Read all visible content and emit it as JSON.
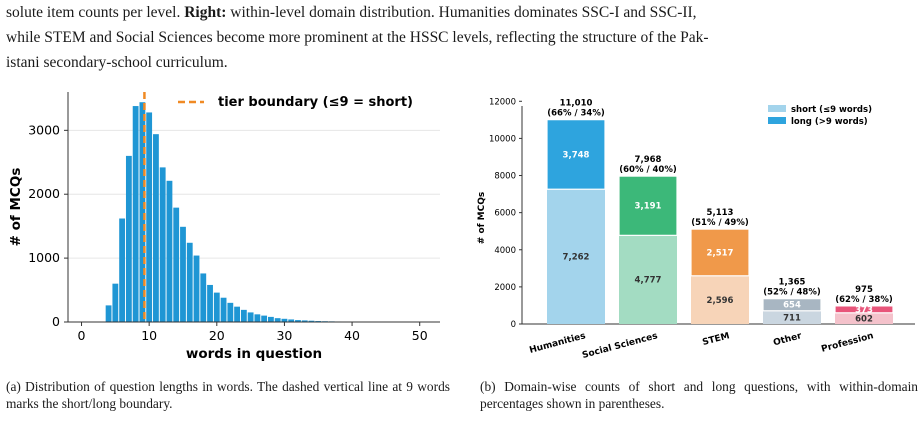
{
  "text": {
    "intro_line1": "solute item counts per level.",
    "intro_right_label": "Right:",
    "intro_line1_rest": " within-level domain distribution. Humanities dominates SSC-I and SSC-II,",
    "intro_line2": "while STEM and Social Sciences become more prominent at the HSSC levels, reflecting the structure of the Pak-",
    "intro_line3": "istani secondary-school curriculum.",
    "caption_a": "(a) Distribution of question lengths in words. The dashed vertical line at 9 words marks the short/long boundary.",
    "caption_b": "(b) Domain-wise counts of short and long questions, with within-domain percentages shown in parentheses."
  },
  "chart_data": [
    {
      "type": "bar",
      "subtype": "histogram",
      "xlabel": "words in question",
      "ylabel": "# of MCQs",
      "xlim": [
        -2,
        53
      ],
      "ylim": [
        0,
        3600
      ],
      "xticks": [
        0,
        10,
        20,
        30,
        40,
        50
      ],
      "yticks": [
        0,
        1000,
        2000,
        3000
      ],
      "x": [
        1,
        2,
        3,
        4,
        5,
        6,
        7,
        8,
        9,
        10,
        11,
        12,
        13,
        14,
        15,
        16,
        17,
        18,
        19,
        20,
        21,
        22,
        23,
        24,
        25,
        26,
        27,
        28,
        29,
        30,
        31,
        32,
        33,
        34,
        35,
        36,
        37,
        38,
        39,
        40,
        41,
        42,
        43,
        44,
        45,
        46,
        47,
        48,
        49,
        50,
        51
      ],
      "values": [
        2,
        3,
        5,
        260,
        600,
        1620,
        2600,
        3380,
        3440,
        3280,
        2940,
        2420,
        2210,
        1790,
        1490,
        1240,
        1040,
        760,
        580,
        460,
        380,
        300,
        240,
        190,
        150,
        120,
        100,
        80,
        60,
        50,
        40,
        30,
        25,
        20,
        15,
        12,
        10,
        8,
        6,
        5,
        4,
        3,
        3,
        2,
        2,
        1,
        1,
        1,
        1,
        1,
        1
      ],
      "bar_color": "#1f96d4",
      "threshold": 9.3,
      "threshold_color": "#f08a24",
      "legend": {
        "label": "tier boundary (≤9 = short)",
        "position": "top-right"
      }
    },
    {
      "type": "bar",
      "subtype": "stacked",
      "ylabel": "# of MCQs",
      "ylim": [
        0,
        12500
      ],
      "yticks": [
        0,
        2000,
        4000,
        6000,
        8000,
        10000,
        12000
      ],
      "categories": [
        "Humanities",
        "Social Sciences",
        "STEM",
        "Other",
        "Profession"
      ],
      "series": [
        {
          "name": "short (≤9 words)",
          "values": [
            7262,
            4777,
            2596,
            711,
            602
          ]
        },
        {
          "name": "long (>9 words)",
          "values": [
            3748,
            3191,
            2517,
            654,
            373
          ]
        }
      ],
      "value_labels_short": [
        "7,262",
        "4,777",
        "2,596",
        "711",
        "602"
      ],
      "value_labels_long": [
        "3,748",
        "3,191",
        "2,517",
        "654",
        "373"
      ],
      "totals": [
        "11,010",
        "7,968",
        "5,113",
        "1,365",
        "975"
      ],
      "percentages": [
        "(66% / 34%)",
        "(60% / 40%)",
        "(51% / 49%)",
        "(52% / 48%)",
        "(62% / 38%)"
      ],
      "colors_short": [
        "#a3d4ec",
        "#a3dcc2",
        "#f7d4b8",
        "#cad6e0",
        "#f4c2cb"
      ],
      "colors_long": [
        "#2ea4de",
        "#3cb879",
        "#f0994a",
        "#a8b6c2",
        "#e8557a"
      ],
      "legend": {
        "position": "top-right",
        "colors": [
          "#a3d4ec",
          "#2ea4de"
        ]
      }
    }
  ]
}
